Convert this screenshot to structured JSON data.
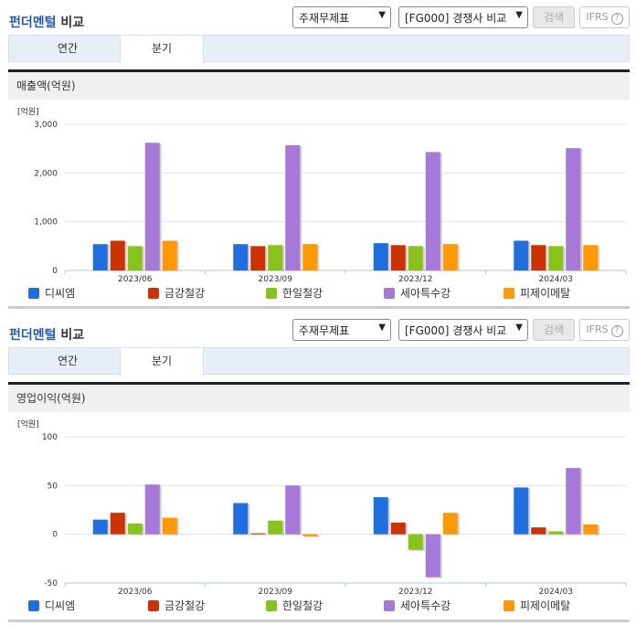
{
  "sections": [
    {
      "title_blue": "펀더멘털",
      "title_rest": " 비교",
      "select1": "주재무제표",
      "select2": "[FG000] 경쟁사 비교",
      "search_label": "검색",
      "ifrs_label": "IFRS",
      "ifrs_help": "?",
      "tabs": [
        {
          "label": "연간"
        },
        {
          "label": "분기"
        }
      ],
      "active_tab": "분기",
      "metric_label": "매출액(억원)",
      "unit_label": "[억원]"
    },
    {
      "title_blue": "펀더멘털",
      "title_rest": " 비교",
      "select1": "주재무제표",
      "select2": "[FG000] 경쟁사 비교",
      "search_label": "검색",
      "ifrs_label": "IFRS",
      "ifrs_help": "?",
      "tabs": [
        {
          "label": "연간"
        },
        {
          "label": "분기"
        }
      ],
      "active_tab": "분기",
      "metric_label": "영업이익(억원)",
      "unit_label": "[억원]"
    }
  ],
  "legend": [
    {
      "name": "디씨엠",
      "color": "#1f6fe0"
    },
    {
      "name": "금강철강",
      "color": "#cc3300"
    },
    {
      "name": "한일철강",
      "color": "#88c21a"
    },
    {
      "name": "세아특수강",
      "color": "#a678d8"
    },
    {
      "name": "피제이메탈",
      "color": "#ff9900"
    }
  ],
  "chart_data": [
    {
      "type": "bar",
      "title": "매출액(억원)",
      "ylabel": "[억원]",
      "xlabel": "",
      "categories": [
        "2023/06",
        "2023/09",
        "2023/12",
        "2024/03"
      ],
      "yticks": [
        "3,000",
        "2,000",
        "1,000",
        "0"
      ],
      "ylim": [
        0,
        3000
      ],
      "grid": true,
      "legend_position": "bottom",
      "series": [
        {
          "name": "디씨엠",
          "values": [
            540,
            540,
            560,
            610
          ]
        },
        {
          "name": "금강철강",
          "values": [
            610,
            500,
            520,
            520
          ]
        },
        {
          "name": "한일철강",
          "values": [
            500,
            520,
            500,
            500
          ]
        },
        {
          "name": "세아특수강",
          "values": [
            2620,
            2570,
            2430,
            2510
          ]
        },
        {
          "name": "피제이메탈",
          "values": [
            610,
            540,
            540,
            520
          ]
        }
      ]
    },
    {
      "type": "bar",
      "title": "영업이익(억원)",
      "ylabel": "[억원]",
      "xlabel": "",
      "categories": [
        "2023/06",
        "2023/09",
        "2023/12",
        "2024/03"
      ],
      "yticks": [
        "100",
        "50",
        "0",
        "-50"
      ],
      "ylim": [
        -50,
        100
      ],
      "grid": true,
      "legend_position": "bottom",
      "series": [
        {
          "name": "디씨엠",
          "values": [
            15,
            32,
            38,
            48
          ]
        },
        {
          "name": "금강철강",
          "values": [
            22,
            1,
            12,
            7
          ]
        },
        {
          "name": "한일철강",
          "values": [
            11,
            14,
            -16,
            3
          ]
        },
        {
          "name": "세아특수강",
          "values": [
            51,
            50,
            -44,
            68
          ]
        },
        {
          "name": "피제이메탈",
          "values": [
            17,
            -2,
            22,
            10
          ]
        }
      ]
    }
  ]
}
